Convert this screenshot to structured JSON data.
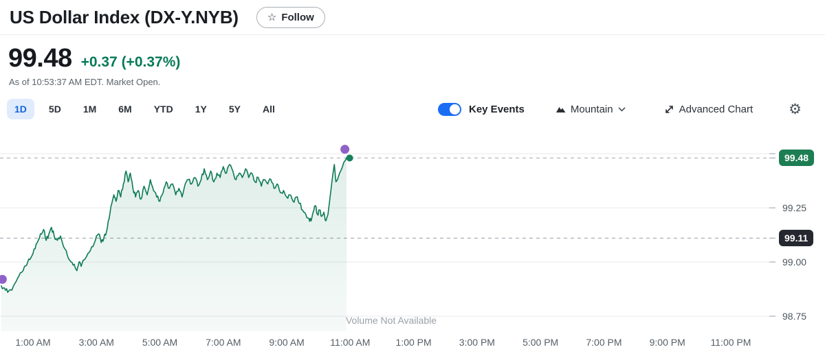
{
  "header": {
    "title": "US Dollar Index (DX-Y.NYB)",
    "follow_label": "Follow"
  },
  "quote": {
    "price": "99.48",
    "change": "+0.37 (+0.37%)",
    "asof": "As of 10:53:37 AM EDT. Market Open.",
    "positive_color": "#067a57"
  },
  "toolbar": {
    "ranges": [
      "1D",
      "5D",
      "1M",
      "6M",
      "YTD",
      "1Y",
      "5Y",
      "All"
    ],
    "selected_range": "1D",
    "key_events_label": "Key Events",
    "key_events_on": true,
    "chart_type_label": "Mountain",
    "advanced_chart_label": "Advanced Chart",
    "toggle_color": "#1b6ef3",
    "selected_tab_color": "#1465d8"
  },
  "chart_data": {
    "type": "area",
    "title": "US Dollar Index (DX-Y.NYB) 1D intraday price",
    "x_tick_labels": [
      "1:00 AM",
      "3:00 AM",
      "5:00 AM",
      "7:00 AM",
      "9:00 AM",
      "11:00 AM",
      "1:00 PM",
      "3:00 PM",
      "5:00 PM",
      "7:00 PM",
      "9:00 PM",
      "11:00 PM"
    ],
    "x_tick_minutes": [
      60,
      180,
      300,
      420,
      540,
      660,
      780,
      900,
      1020,
      1140,
      1260,
      1380
    ],
    "x_domain_minutes": [
      0,
      1440
    ],
    "ylim": [
      98.68,
      99.55
    ],
    "y_ticks": [
      {
        "label": "99.25",
        "value": 99.25
      },
      {
        "label": "99.00",
        "value": 99.0
      },
      {
        "label": "98.75",
        "value": 98.75
      }
    ],
    "gridline_values": [
      99.5,
      99.25,
      99.0,
      98.75
    ],
    "current_price": {
      "label": "99.48",
      "value": 99.48,
      "badge_color": "#1d7d53"
    },
    "previous_close": {
      "label": "99.11",
      "value": 99.11,
      "badge_color": "#25282e"
    },
    "no_volume_label": "Volume Not Available",
    "line_color": "#0c7a55",
    "fill_color_top": "rgba(12,122,85,0.13)",
    "fill_color_bottom": "rgba(12,122,85,0.04)",
    "dashed_line_color": "#a7aeb5",
    "grid_color": "#e8e9eb",
    "event_marker_color": "#8f62c8",
    "current_dot_color": "#17805c",
    "event_markers": [
      {
        "t": 2,
        "v": 98.92
      },
      {
        "t": 650,
        "v": 99.52
      }
    ],
    "current_dot": {
      "t": 659,
      "v": 99.48
    },
    "points": [
      [
        0,
        98.89
      ],
      [
        6,
        98.88
      ],
      [
        12,
        98.86
      ],
      [
        20,
        98.87
      ],
      [
        28,
        98.91
      ],
      [
        36,
        98.95
      ],
      [
        44,
        98.98
      ],
      [
        50,
        99.0
      ],
      [
        56,
        99.02
      ],
      [
        62,
        99.06
      ],
      [
        68,
        99.09
      ],
      [
        74,
        99.13
      ],
      [
        80,
        99.15
      ],
      [
        85,
        99.1
      ],
      [
        90,
        99.13
      ],
      [
        95,
        99.16
      ],
      [
        100,
        99.12
      ],
      [
        106,
        99.1
      ],
      [
        112,
        99.12
      ],
      [
        118,
        99.07
      ],
      [
        125,
        99.03
      ],
      [
        132,
        99.0
      ],
      [
        138,
        98.99
      ],
      [
        143,
        98.96
      ],
      [
        147,
        99.0
      ],
      [
        151,
        98.98
      ],
      [
        157,
        99.01
      ],
      [
        164,
        99.04
      ],
      [
        171,
        99.07
      ],
      [
        178,
        99.1
      ],
      [
        184,
        99.13
      ],
      [
        189,
        99.09
      ],
      [
        194,
        99.11
      ],
      [
        199,
        99.14
      ],
      [
        204,
        99.2
      ],
      [
        209,
        99.27
      ],
      [
        213,
        99.31
      ],
      [
        217,
        99.28
      ],
      [
        221,
        99.33
      ],
      [
        226,
        99.3
      ],
      [
        231,
        99.36
      ],
      [
        236,
        99.42
      ],
      [
        240,
        99.37
      ],
      [
        244,
        99.41
      ],
      [
        249,
        99.34
      ],
      [
        254,
        99.3
      ],
      [
        259,
        99.33
      ],
      [
        264,
        99.29
      ],
      [
        270,
        99.35
      ],
      [
        276,
        99.31
      ],
      [
        282,
        99.38
      ],
      [
        288,
        99.33
      ],
      [
        294,
        99.3
      ],
      [
        300,
        99.28
      ],
      [
        306,
        99.32
      ],
      [
        312,
        99.37
      ],
      [
        318,
        99.34
      ],
      [
        324,
        99.36
      ],
      [
        330,
        99.31
      ],
      [
        336,
        99.34
      ],
      [
        342,
        99.3
      ],
      [
        348,
        99.36
      ],
      [
        354,
        99.38
      ],
      [
        360,
        99.36
      ],
      [
        366,
        99.39
      ],
      [
        372,
        99.35
      ],
      [
        378,
        99.38
      ],
      [
        384,
        99.43
      ],
      [
        390,
        99.38
      ],
      [
        396,
        99.42
      ],
      [
        402,
        99.37
      ],
      [
        408,
        99.41
      ],
      [
        414,
        99.39
      ],
      [
        420,
        99.44
      ],
      [
        426,
        99.41
      ],
      [
        432,
        99.45
      ],
      [
        438,
        99.42
      ],
      [
        444,
        99.38
      ],
      [
        450,
        99.41
      ],
      [
        456,
        99.39
      ],
      [
        462,
        99.43
      ],
      [
        468,
        99.39
      ],
      [
        474,
        99.41
      ],
      [
        480,
        99.37
      ],
      [
        486,
        99.39
      ],
      [
        492,
        99.35
      ],
      [
        498,
        99.38
      ],
      [
        504,
        99.36
      ],
      [
        510,
        99.38
      ],
      [
        516,
        99.34
      ],
      [
        522,
        99.36
      ],
      [
        528,
        99.32
      ],
      [
        534,
        99.33
      ],
      [
        540,
        99.3
      ],
      [
        546,
        99.31
      ],
      [
        552,
        99.28
      ],
      [
        558,
        99.3
      ],
      [
        564,
        99.27
      ],
      [
        570,
        99.24
      ],
      [
        576,
        99.22
      ],
      [
        582,
        99.2
      ],
      [
        586,
        99.19
      ],
      [
        590,
        99.23
      ],
      [
        594,
        99.26
      ],
      [
        598,
        99.22
      ],
      [
        602,
        99.24
      ],
      [
        606,
        99.21
      ],
      [
        610,
        99.23
      ],
      [
        614,
        99.19
      ],
      [
        618,
        99.22
      ],
      [
        621,
        99.28
      ],
      [
        624,
        99.34
      ],
      [
        627,
        99.4
      ],
      [
        630,
        99.45
      ],
      [
        633,
        99.37
      ],
      [
        636,
        99.38
      ],
      [
        640,
        99.41
      ],
      [
        644,
        99.43
      ],
      [
        648,
        99.46
      ],
      [
        651,
        99.47
      ],
      [
        653,
        99.48
      ]
    ]
  }
}
